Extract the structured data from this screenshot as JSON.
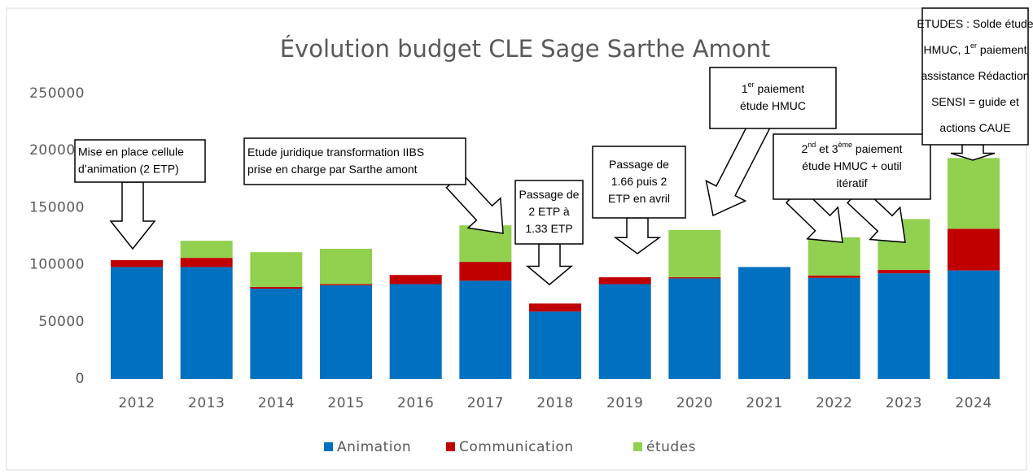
{
  "chart_data": {
    "type": "bar",
    "stacked": true,
    "title": "Évolution budget CLE Sage Sarthe Amont",
    "categories": [
      "2012",
      "2013",
      "2014",
      "2015",
      "2016",
      "2017",
      "2018",
      "2019",
      "2020",
      "2021",
      "2022",
      "2023",
      "2024"
    ],
    "series": [
      {
        "name": "Animation",
        "color": "#0070c0",
        "values": [
          98000,
          98000,
          79000,
          82000,
          83000,
          86000,
          59000,
          83000,
          88000,
          98000,
          88500,
          92500,
          95000
        ]
      },
      {
        "name": "Communication",
        "color": "#c00000",
        "values": [
          6000,
          8000,
          1500,
          1000,
          8000,
          16500,
          7000,
          6000,
          1000,
          0,
          2000,
          3000,
          36500
        ]
      },
      {
        "name": "études",
        "color": "#92d050",
        "values": [
          0,
          15000,
          30500,
          31000,
          0,
          32000,
          0,
          0,
          41500,
          0,
          33500,
          44500,
          62000
        ]
      }
    ],
    "ylim": [
      0,
      250000
    ],
    "yticks": [
      0,
      50000,
      100000,
      150000,
      200000,
      250000
    ],
    "legend": "bottom",
    "annotations": [
      {
        "lines": [
          [
            "Mise en place cellule"
          ],
          [
            "d’animation (2 ETP)"
          ]
        ]
      },
      {
        "lines": [
          [
            "Etude juridique transformation IIBS"
          ],
          [
            "prise en charge par Sarthe amont"
          ]
        ]
      },
      {
        "lines": [
          [
            "Passage de"
          ],
          [
            "2 ETP à"
          ],
          [
            "1.33 ETP"
          ]
        ]
      },
      {
        "lines": [
          [
            "Passage de"
          ],
          [
            "1.66 puis 2"
          ],
          [
            "ETP en avril"
          ]
        ]
      },
      {
        "lines": [
          [
            "1",
            {
              "sup": "er"
            },
            " paiement"
          ],
          [
            "étude HMUC"
          ]
        ]
      },
      {
        "lines": [
          [
            "2",
            {
              "sup": "nd"
            },
            " et 3",
            {
              "sup": "ème"
            },
            " paiement"
          ],
          [
            "étude HMUC + outil"
          ],
          [
            "itératif"
          ]
        ]
      },
      {
        "lines": [
          [
            "ETUDES : Solde étude"
          ],
          [
            "HMUC, 1",
            {
              "sup": "er"
            },
            " paiement"
          ],
          [
            "assistance Rédaction"
          ],
          [
            "SENSI = guide et"
          ],
          [
            "actions CAUE"
          ]
        ]
      }
    ]
  }
}
